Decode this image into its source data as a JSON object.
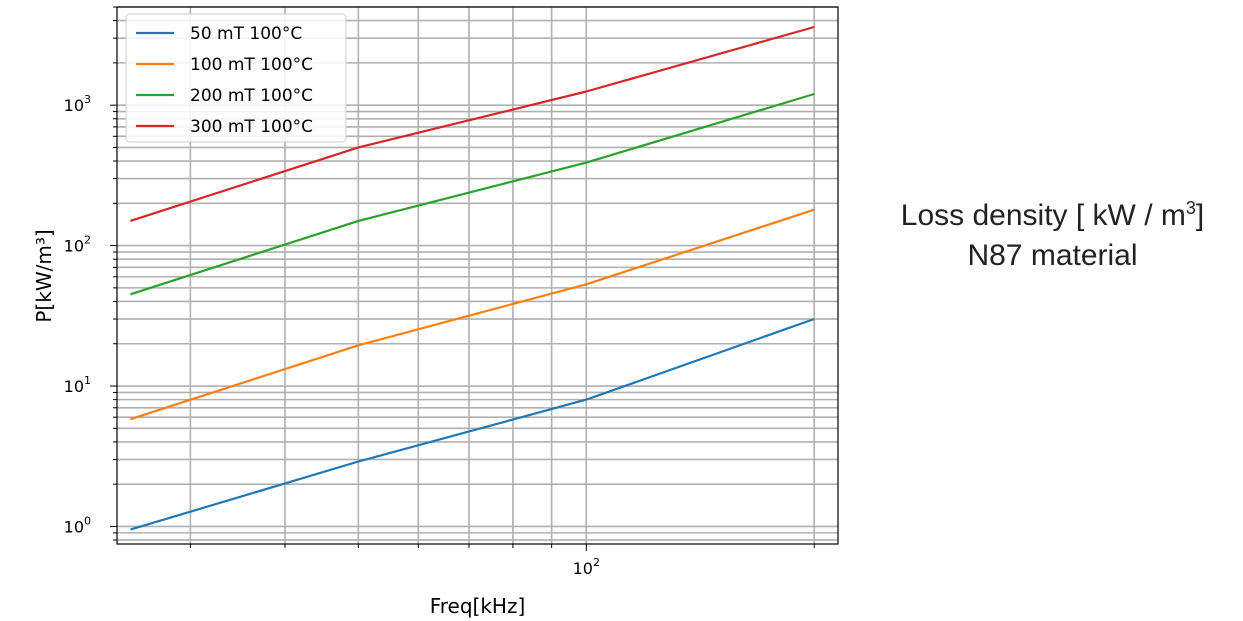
{
  "caption": {
    "line1_prefix": "Loss density [ kW / m",
    "line1_sup": "3",
    "line1_suffix": "]",
    "line2": "N87 material"
  },
  "chart_data": {
    "type": "line",
    "xlabel": "Freq[kHz]",
    "ylabel": "P[kW/m³]",
    "xscale": "log",
    "yscale": "log",
    "xlim": [
      24,
      215
    ],
    "ylim": [
      0.75,
      5000
    ],
    "grid": true,
    "grid_minor": true,
    "legend_placement": "top-left",
    "x": [
      25,
      50,
      100,
      200
    ],
    "xticks": [
      {
        "value": 100,
        "base": "10",
        "exp": "2"
      }
    ],
    "yticks": [
      {
        "value": 1,
        "base": "10",
        "exp": "0"
      },
      {
        "value": 10,
        "base": "10",
        "exp": "1"
      },
      {
        "value": 100,
        "base": "10",
        "exp": "2"
      },
      {
        "value": 1000,
        "base": "10",
        "exp": "3"
      }
    ],
    "series": [
      {
        "name": "50 mT 100°C",
        "color": "#1f77b4",
        "values": [
          0.95,
          2.9,
          8,
          30
        ]
      },
      {
        "name": "100 mT 100°C",
        "color": "#ff7f0e",
        "values": [
          5.8,
          19.5,
          53,
          180
        ]
      },
      {
        "name": "200 mT 100°C",
        "color": "#2ca02c",
        "values": [
          45,
          150,
          390,
          1200
        ]
      },
      {
        "name": "300 mT 100°C",
        "color": "#d62728",
        "values": [
          150,
          500,
          1250,
          3600
        ]
      }
    ]
  }
}
